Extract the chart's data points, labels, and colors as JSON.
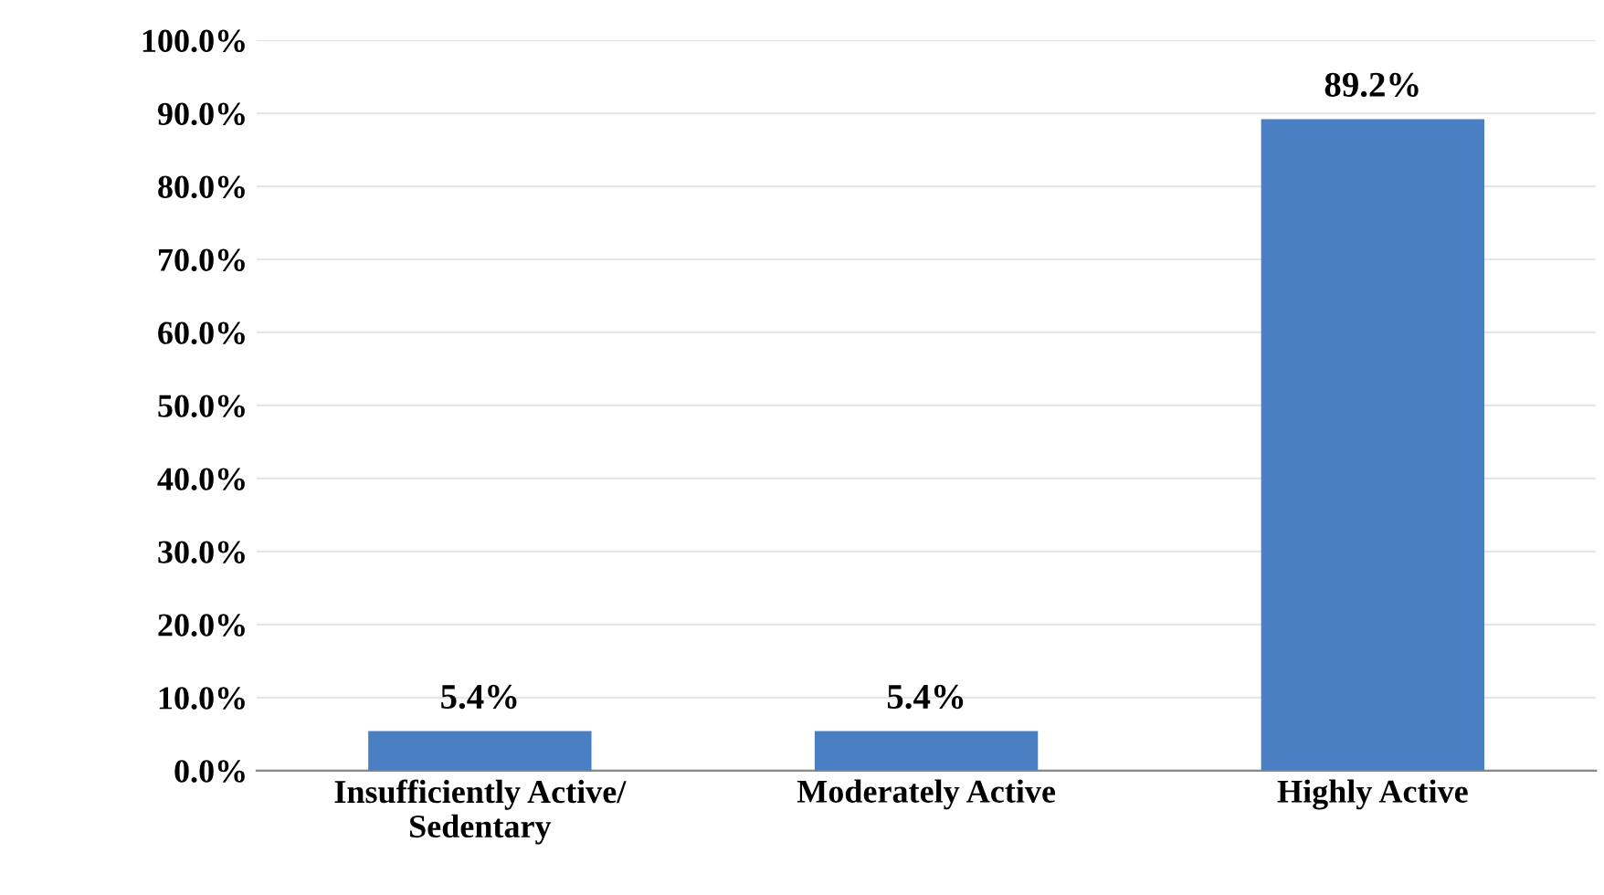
{
  "chart_data": {
    "type": "bar",
    "categories": [
      "Insufficiently Active/\nSedentary",
      "Moderately Active",
      "Highly Active"
    ],
    "values": [
      5.4,
      5.4,
      89.2
    ],
    "value_labels": [
      "5.4%",
      "5.4%",
      "89.2%"
    ],
    "color": "#4a7fc4",
    "ylim": [
      0,
      100
    ],
    "yticks": [
      {
        "value": 0,
        "label": "0.0%"
      },
      {
        "value": 10,
        "label": "10.0%"
      },
      {
        "value": 20,
        "label": "20.0%"
      },
      {
        "value": 30,
        "label": "30.0%"
      },
      {
        "value": 40,
        "label": "40.0%"
      },
      {
        "value": 50,
        "label": "50.0%"
      },
      {
        "value": 60,
        "label": "60.0%"
      },
      {
        "value": 70,
        "label": "70.0%"
      },
      {
        "value": 80,
        "label": "80.0%"
      },
      {
        "value": 90,
        "label": "90.0%"
      },
      {
        "value": 100,
        "label": "100.0%"
      }
    ],
    "grid": "y",
    "legend": false
  }
}
